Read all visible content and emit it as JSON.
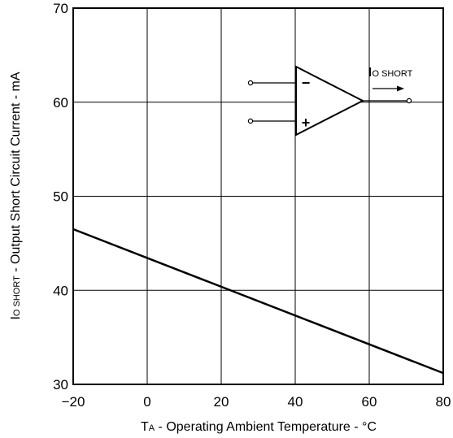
{
  "chart_data": {
    "type": "line",
    "xlim": [
      -20,
      80
    ],
    "ylim": [
      30,
      70
    ],
    "xticks": [
      "−20",
      "0",
      "20",
      "40",
      "60",
      "80"
    ],
    "yticks": [
      "30",
      "40",
      "50",
      "60",
      "70"
    ],
    "xlabel": {
      "main": "T",
      "sub": "A",
      "rest": " - Operating Ambient Temperature - °C"
    },
    "ylabel": {
      "main": "I",
      "sub": "O SHORT",
      "rest": " - Output Short Circuit Current - mA"
    },
    "series": [
      {
        "x": [
          -20,
          80
        ],
        "y": [
          46.5,
          31.2
        ]
      }
    ],
    "grid": true,
    "inset": {
      "label_main": "I",
      "label_sub": "O SHORT",
      "minus": "−",
      "plus": "+"
    }
  }
}
